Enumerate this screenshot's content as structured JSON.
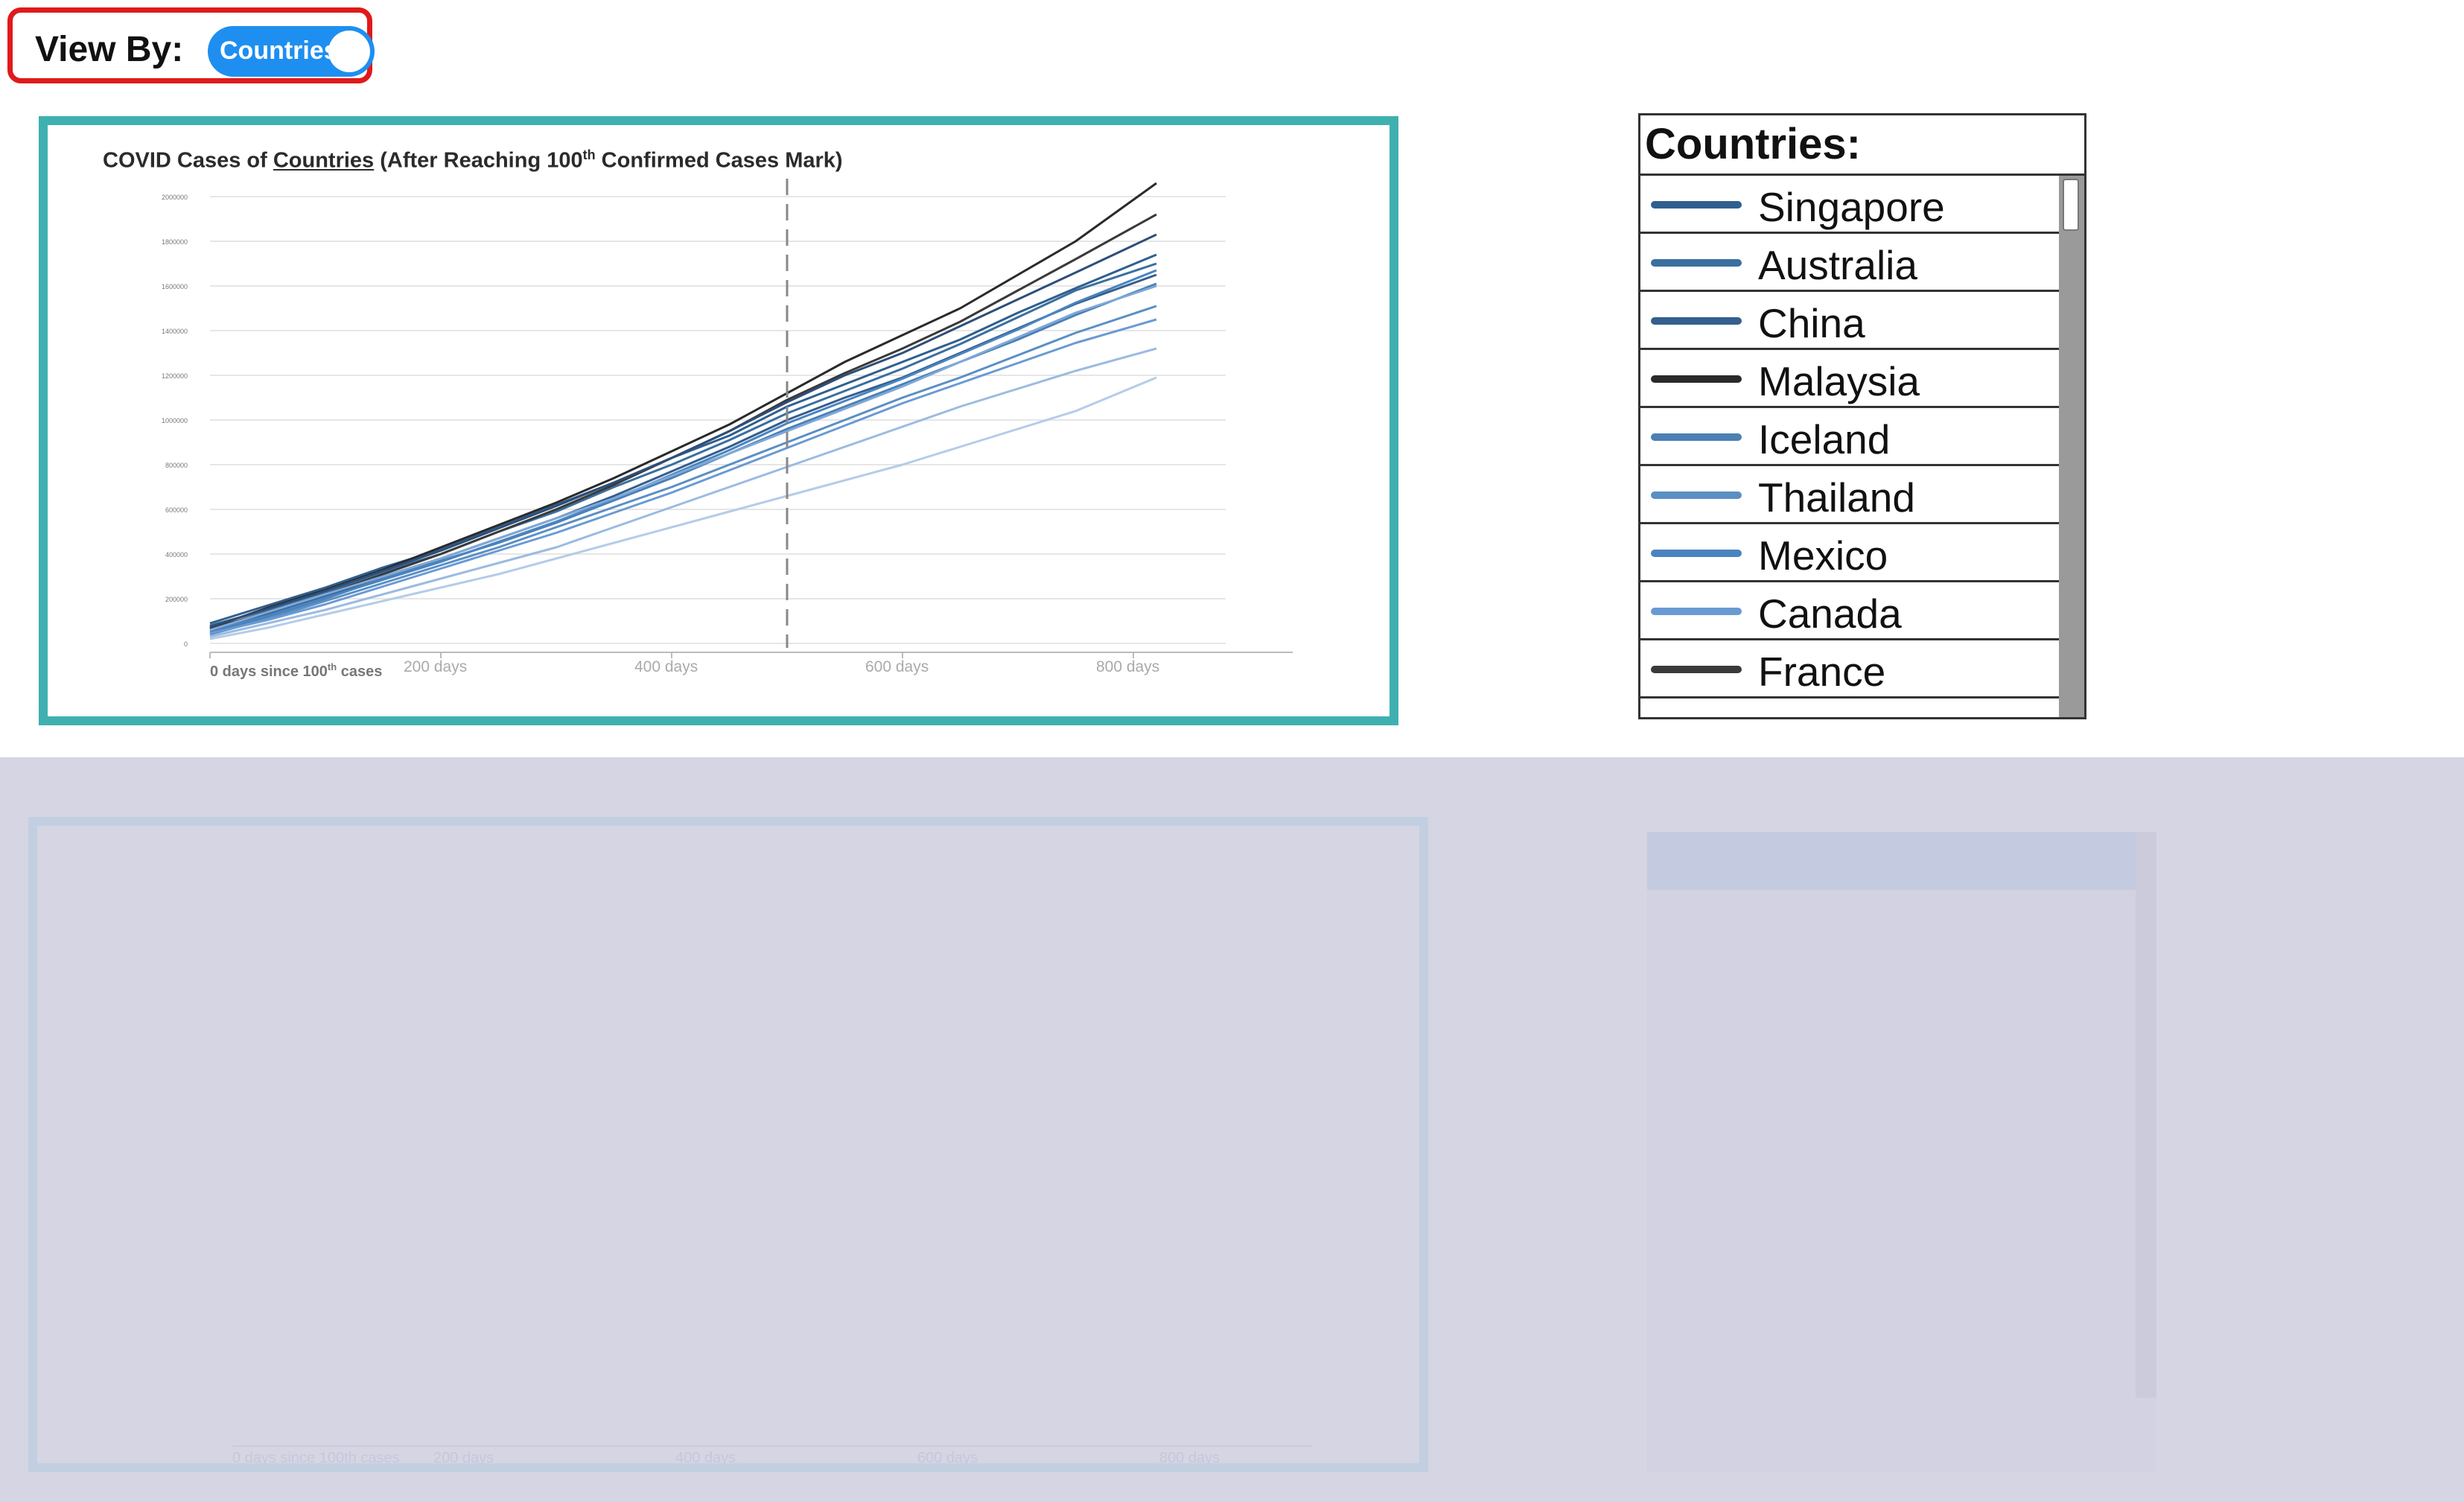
{
  "view_by": {
    "label": "View By:",
    "toggle_text": "Countries",
    "toggle_on": true,
    "accent": "#1e8ff0"
  },
  "chart": {
    "title_prefix": "COVID Cases of ",
    "title_link": "Countries",
    "title_mid": " (After Reaching  100",
    "title_sup": "th",
    "title_suffix": " Confirmed Cases Mark)",
    "x_origin_label": "0 days since 100",
    "x_origin_sup": "th",
    "x_origin_suffix": " cases",
    "border_color": "#3fb0b0"
  },
  "chart_data": {
    "type": "line",
    "title": "COVID Cases of Countries (After Reaching 100th Confirmed Cases Mark)",
    "xlabel": "",
    "ylabel": "",
    "x_ticks": [
      {
        "value": 0,
        "label": "0 days since 100th cases"
      },
      {
        "value": 200,
        "label": "200 days"
      },
      {
        "value": 400,
        "label": "400 days"
      },
      {
        "value": 600,
        "label": "600 days"
      },
      {
        "value": 800,
        "label": "800 days"
      }
    ],
    "y_ticks": [
      0,
      200000,
      400000,
      600000,
      800000,
      1000000,
      1200000,
      1400000,
      1600000,
      1800000,
      2000000
    ],
    "xlim": [
      0,
      880
    ],
    "ylim": [
      0,
      2000000
    ],
    "reference_line_x": 500,
    "grid": true,
    "x": [
      0,
      50,
      100,
      150,
      200,
      250,
      300,
      350,
      400,
      450,
      500,
      550,
      600,
      650,
      700,
      750,
      820
    ],
    "series": [
      {
        "name": "Singapore",
        "color": "#2f5f8f",
        "values": [
          90000,
          170000,
          250000,
          340000,
          420000,
          520000,
          620000,
          720000,
          830000,
          930000,
          1060000,
          1160000,
          1260000,
          1360000,
          1480000,
          1590000,
          1740000
        ]
      },
      {
        "name": "Australia",
        "color": "#3a6f9f",
        "values": [
          80000,
          150000,
          230000,
          320000,
          400000,
          500000,
          590000,
          700000,
          800000,
          910000,
          1030000,
          1130000,
          1230000,
          1340000,
          1460000,
          1580000,
          1700000
        ]
      },
      {
        "name": "China",
        "color": "#345f8f",
        "values": [
          60000,
          130000,
          210000,
          300000,
          380000,
          470000,
          560000,
          660000,
          770000,
          880000,
          1000000,
          1100000,
          1190000,
          1300000,
          1410000,
          1520000,
          1650000
        ]
      },
      {
        "name": "Malaysia",
        "color": "#2a2a2a",
        "values": [
          70000,
          160000,
          240000,
          330000,
          430000,
          530000,
          630000,
          740000,
          860000,
          980000,
          1120000,
          1260000,
          1380000,
          1500000,
          1650000,
          1800000,
          2060000
        ]
      },
      {
        "name": "Iceland",
        "color": "#4a80b4",
        "values": [
          50000,
          120000,
          200000,
          290000,
          370000,
          450000,
          540000,
          640000,
          740000,
          850000,
          960000,
          1060000,
          1160000,
          1260000,
          1360000,
          1470000,
          1610000
        ]
      },
      {
        "name": "Thailand",
        "color": "#5a8fc4",
        "values": [
          40000,
          110000,
          190000,
          270000,
          350000,
          430000,
          520000,
          610000,
          700000,
          800000,
          900000,
          1000000,
          1100000,
          1190000,
          1290000,
          1390000,
          1510000
        ]
      },
      {
        "name": "Mexico",
        "color": "#4a84c0",
        "values": [
          55000,
          125000,
          205000,
          285000,
          365000,
          455000,
          545000,
          645000,
          755000,
          865000,
          985000,
          1085000,
          1185000,
          1295000,
          1405000,
          1525000,
          1670000
        ]
      },
      {
        "name": "Canada",
        "color": "#6a9ad4",
        "values": [
          45000,
          105000,
          175000,
          255000,
          335000,
          415000,
          495000,
          585000,
          675000,
          775000,
          875000,
          975000,
          1075000,
          1165000,
          1255000,
          1345000,
          1450000
        ]
      },
      {
        "name": "France",
        "color": "#3a3a3a",
        "values": [
          65000,
          140000,
          220000,
          310000,
          400000,
          500000,
          600000,
          710000,
          830000,
          950000,
          1090000,
          1210000,
          1320000,
          1440000,
          1580000,
          1720000,
          1920000
        ]
      },
      {
        "name": "",
        "color": "#9bbbe0",
        "values": [
          30000,
          90000,
          150000,
          220000,
          290000,
          360000,
          430000,
          520000,
          610000,
          700000,
          790000,
          880000,
          970000,
          1060000,
          1140000,
          1220000,
          1320000
        ]
      },
      {
        "name": "",
        "color": "#b4cce8",
        "values": [
          20000,
          70000,
          130000,
          190000,
          250000,
          310000,
          380000,
          450000,
          520000,
          590000,
          660000,
          730000,
          800000,
          880000,
          960000,
          1040000,
          1190000
        ]
      },
      {
        "name": "",
        "color": "#7fa8d8",
        "values": [
          60000,
          140000,
          220000,
          300000,
          380000,
          470000,
          560000,
          650000,
          750000,
          850000,
          950000,
          1050000,
          1150000,
          1260000,
          1370000,
          1480000,
          1600000
        ]
      },
      {
        "name": "",
        "color": "#2d4f7a",
        "values": [
          75000,
          155000,
          235000,
          325000,
          415000,
          515000,
          615000,
          720000,
          830000,
          950000,
          1080000,
          1200000,
          1300000,
          1420000,
          1540000,
          1660000,
          1830000
        ]
      }
    ]
  },
  "legend": {
    "title": "Countries:",
    "items": [
      {
        "name": "Singapore",
        "color": "#2f5f8f"
      },
      {
        "name": "Australia",
        "color": "#3a6f9f"
      },
      {
        "name": "China",
        "color": "#345f8f"
      },
      {
        "name": "Malaysia",
        "color": "#2a2a2a"
      },
      {
        "name": "Iceland",
        "color": "#4a80b4"
      },
      {
        "name": "Thailand",
        "color": "#5a8fc4"
      },
      {
        "name": "Mexico",
        "color": "#4a84c0"
      },
      {
        "name": "Canada",
        "color": "#6a9ad4"
      },
      {
        "name": "France",
        "color": "#3a3a3a"
      }
    ]
  },
  "ghost": {
    "ticks": [
      "0 days since 100th cases",
      "200 days",
      "400 days",
      "600 days",
      "800 days"
    ]
  }
}
